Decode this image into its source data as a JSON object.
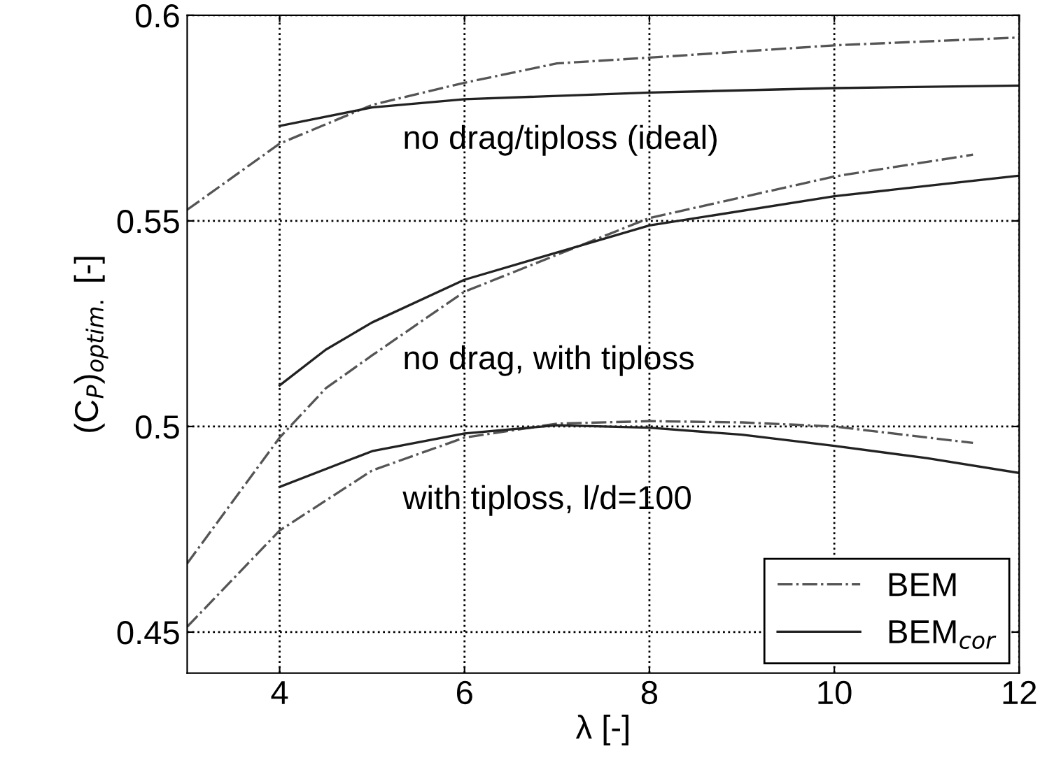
{
  "chart_data": {
    "type": "line",
    "xlabel": "λ [-]",
    "ylabel": "(C$_{P}$)$_{optim.}$ [-]",
    "xlim": [
      3,
      12
    ],
    "ylim": [
      0.44,
      0.6
    ],
    "xticks": [
      4,
      6,
      8,
      10,
      12
    ],
    "yticks": [
      0.45,
      0.5,
      0.55,
      0.6
    ],
    "grid": true,
    "legend": "bottom right",
    "marker": "none",
    "series": [
      {
        "name": "BEM",
        "color": "#555555",
        "line_style": "dashdot",
        "x": [
          3,
          4,
          5,
          6,
          7,
          8,
          10,
          12
        ],
        "values": [
          0.5527,
          0.5688,
          0.5782,
          0.5836,
          0.5883,
          0.5897,
          0.5927,
          0.5946
        ]
      },
      {
        "name": "BEM$_{cor}$",
        "color": "#222222",
        "line_style": "solid",
        "x": [
          4,
          5,
          6,
          8,
          10,
          12
        ],
        "values": [
          0.5731,
          0.5776,
          0.5796,
          0.5812,
          0.5823,
          0.5829
        ]
      },
      {
        "color": "#555555",
        "line_style": "dashdot",
        "x": [
          3,
          4,
          4.5,
          5,
          6,
          8,
          10,
          11.5
        ],
        "values": [
          0.4667,
          0.4973,
          0.5093,
          0.5173,
          0.5328,
          0.5507,
          0.5608,
          0.5661
        ]
      },
      {
        "color": "#222222",
        "line_style": "solid",
        "x": [
          4,
          4.5,
          5,
          6,
          8,
          10,
          12
        ],
        "values": [
          0.51,
          0.5187,
          0.5253,
          0.5357,
          0.5489,
          0.556,
          0.561
        ]
      },
      {
        "color": "#555555",
        "line_style": "dashdot",
        "x": [
          3,
          4,
          5,
          6,
          7,
          8,
          9,
          10,
          11.5
        ],
        "values": [
          0.4513,
          0.4747,
          0.4893,
          0.4973,
          0.5007,
          0.5013,
          0.501,
          0.5,
          0.496
        ]
      },
      {
        "color": "#222222",
        "line_style": "solid",
        "x": [
          4,
          5,
          6,
          7,
          8,
          9,
          10,
          11,
          12
        ],
        "values": [
          0.4853,
          0.494,
          0.4983,
          0.5003,
          0.4997,
          0.498,
          0.4953,
          0.4923,
          0.4887
        ]
      }
    ],
    "annotations": [
      "no drag/tiploss (ideal)",
      "no drag, with tiploss",
      "with tiploss, l/d=100"
    ]
  }
}
